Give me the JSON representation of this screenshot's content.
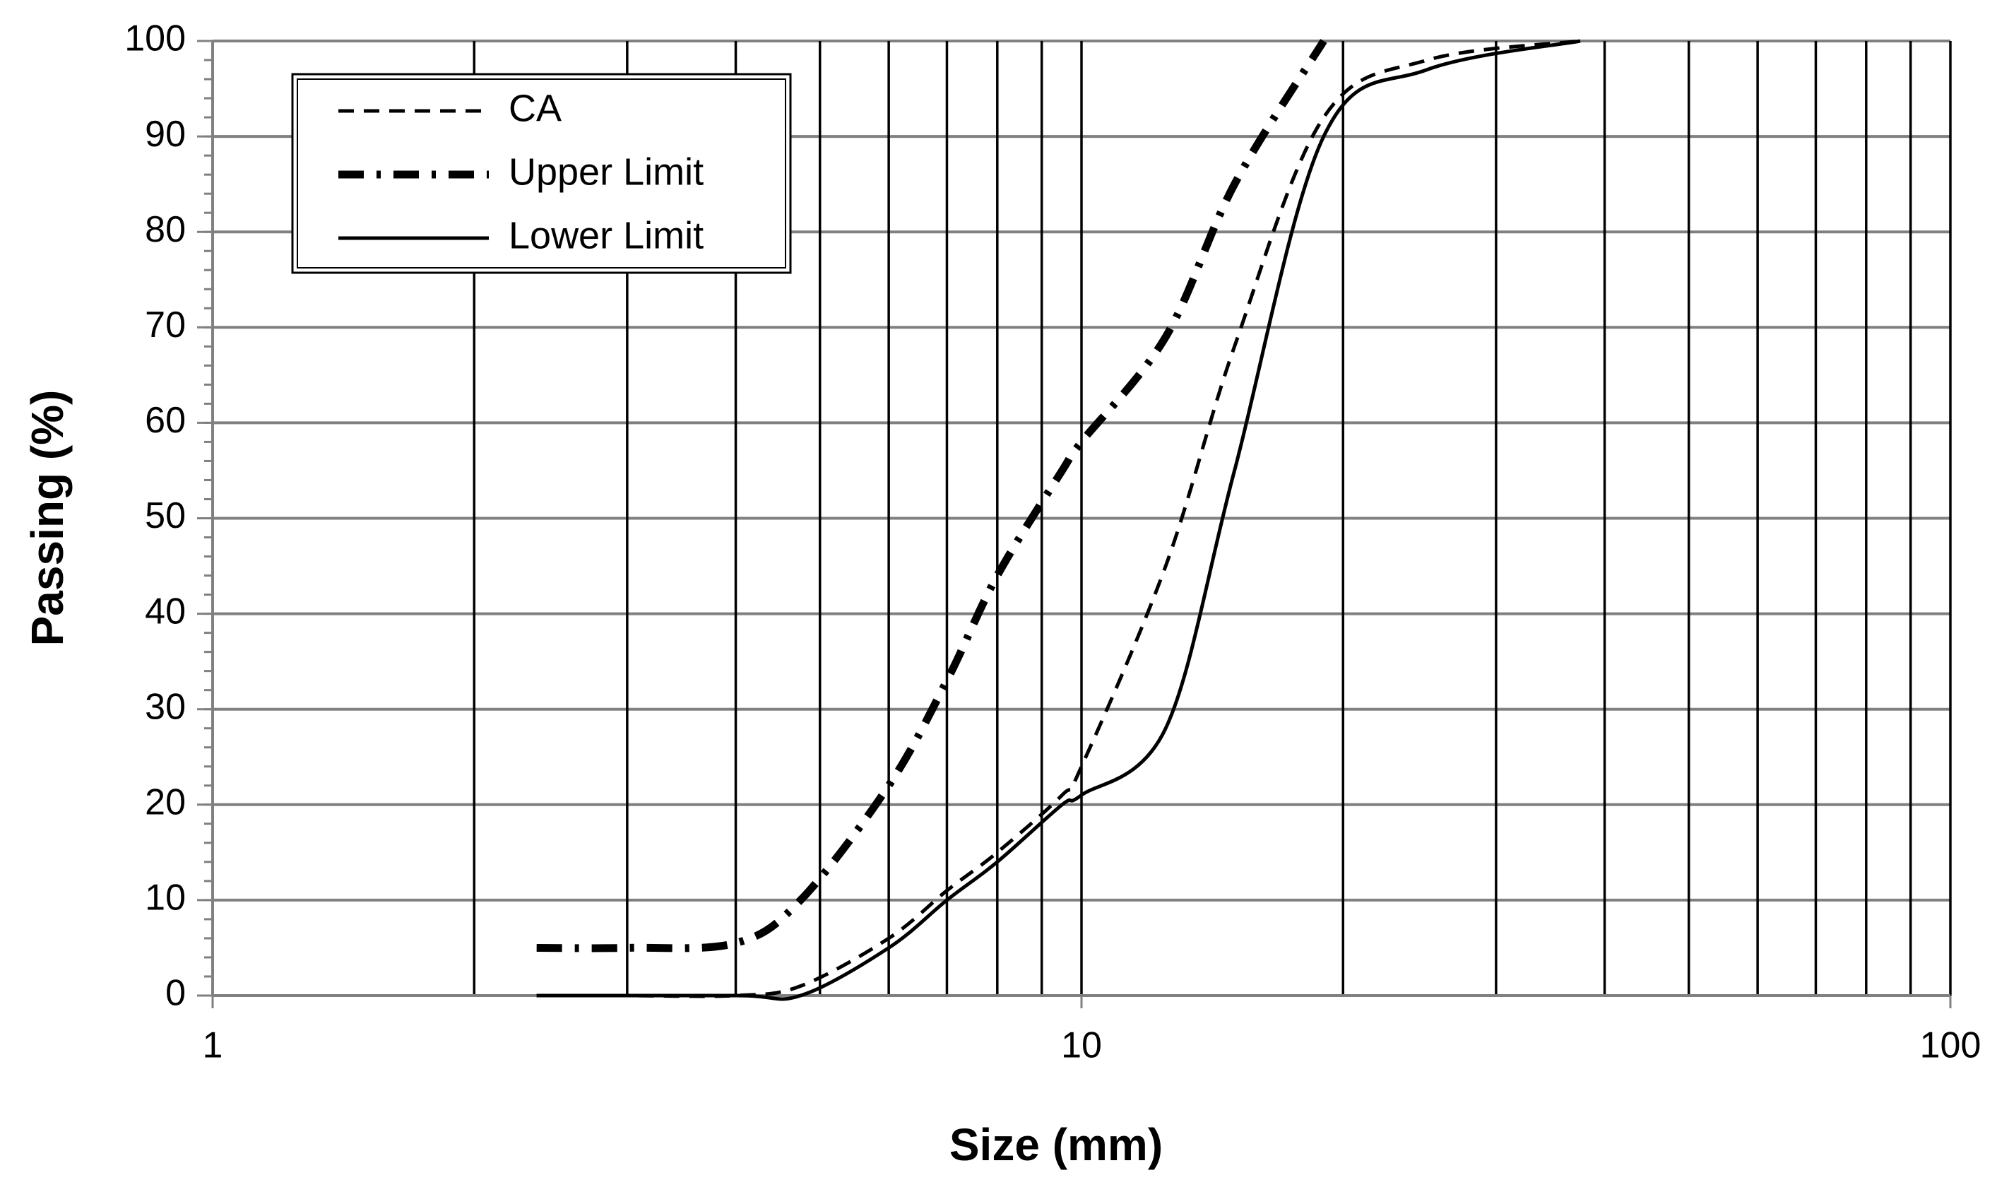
{
  "chart_data": {
    "type": "line",
    "xlabel": "Size (mm)",
    "ylabel": "Passing (%)",
    "log_x": true,
    "grid": true,
    "legend": "upper left",
    "xlim": [
      1,
      100
    ],
    "xticks": [
      1,
      10,
      100
    ],
    "ylim": [
      0,
      100
    ],
    "yticks": [
      0,
      10,
      20,
      30,
      40,
      50,
      60,
      70,
      80,
      90,
      100
    ],
    "series": [
      {
        "name": "CA",
        "color": "#000000",
        "dash": "dashed",
        "x": [
          2.36,
          3,
          4,
          4.75,
          6,
          7,
          8,
          9.5,
          10,
          12.5,
          15,
          19,
          25,
          37.5
        ],
        "values": [
          0,
          0,
          0,
          1,
          6,
          11,
          15,
          21,
          24,
          45,
          68,
          92,
          98,
          100
        ]
      },
      {
        "name": "Upper Limit",
        "color": "#000000",
        "dash": "dashdot",
        "x": [
          2.36,
          3,
          4,
          4.75,
          6,
          7,
          8,
          9.5,
          10,
          12.5,
          15,
          19
        ],
        "values": [
          5,
          5,
          5.5,
          10,
          22,
          33,
          44,
          55,
          58,
          69,
          85,
          100
        ]
      },
      {
        "name": "Lower Limit",
        "color": "#000000",
        "dash": "solid",
        "x": [
          2.36,
          4,
          4.75,
          6,
          7,
          8,
          9.5,
          10,
          12.5,
          15,
          19,
          25,
          37.5
        ],
        "values": [
          0,
          0,
          0,
          5,
          10,
          14,
          20,
          21,
          28,
          55,
          90,
          97,
          100
        ]
      }
    ]
  }
}
